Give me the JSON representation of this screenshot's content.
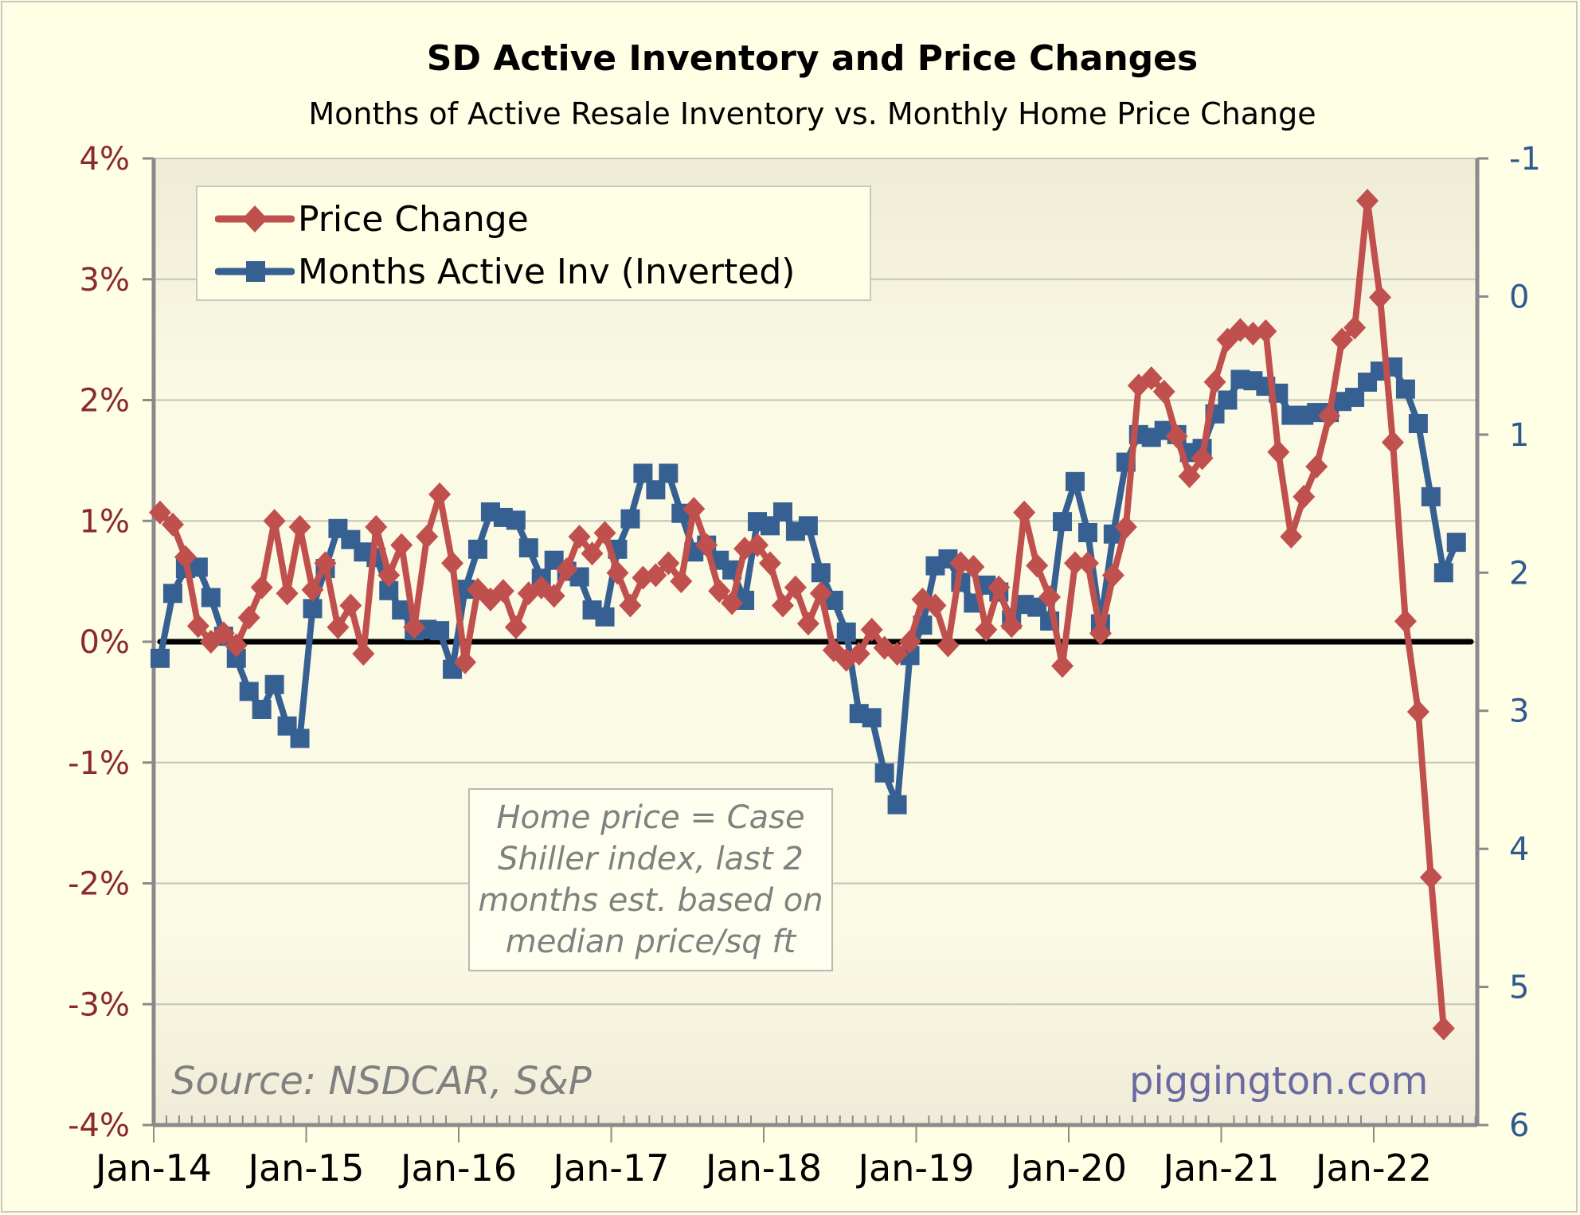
{
  "chart_data": {
    "type": "line",
    "title": "SD Active Inventory and Price Changes",
    "subtitle": "Months of Active Resale Inventory vs. Monthly Home Price Change",
    "xlabel": "",
    "ylabel_left": "",
    "ylabel_right": "",
    "x_tick_labels": [
      "Jan-14",
      "Jan-15",
      "Jan-16",
      "Jan-17",
      "Jan-18",
      "Jan-19",
      "Jan-20",
      "Jan-21",
      "Jan-22"
    ],
    "x_start": "Jan-14",
    "x_frequency": "monthly",
    "y_left": {
      "ticks": [
        "4%",
        "3%",
        "2%",
        "1%",
        "0%",
        "-1%",
        "-2%",
        "-3%",
        "-4%"
      ],
      "range": [
        -4,
        4
      ],
      "unit": "%"
    },
    "y_right": {
      "ticks": [
        "-1",
        "0",
        "1",
        "2",
        "3",
        "4",
        "5",
        "6"
      ],
      "range": [
        -1,
        6
      ],
      "inverted": true
    },
    "grid": true,
    "zero_line": 0,
    "legend_position": "top-left",
    "series": [
      {
        "name": "Price Change",
        "axis": "left",
        "color": "#c0504d",
        "marker": "diamond",
        "values": [
          1.07,
          0.97,
          0.7,
          0.13,
          0.0,
          0.07,
          -0.03,
          0.2,
          0.45,
          1.0,
          0.4,
          0.95,
          0.43,
          0.65,
          0.12,
          0.3,
          -0.1,
          0.95,
          0.55,
          0.8,
          0.12,
          0.87,
          1.22,
          0.65,
          -0.17,
          0.43,
          0.35,
          0.42,
          0.12,
          0.4,
          0.45,
          0.38,
          0.6,
          0.87,
          0.73,
          0.9,
          0.57,
          0.3,
          0.53,
          0.55,
          0.65,
          0.5,
          1.1,
          0.8,
          0.42,
          0.32,
          0.77,
          0.8,
          0.65,
          0.3,
          0.45,
          0.15,
          0.4,
          -0.07,
          -0.15,
          -0.1,
          0.1,
          -0.05,
          -0.1,
          0.0,
          0.35,
          0.3,
          -0.03,
          0.65,
          0.62,
          0.1,
          0.45,
          0.13,
          1.07,
          0.63,
          0.37,
          -0.2,
          0.65,
          0.65,
          0.07,
          0.55,
          0.95,
          2.12,
          2.18,
          2.07,
          1.7,
          1.37,
          1.52,
          2.15,
          2.5,
          2.58,
          2.55,
          2.57,
          1.57,
          0.87,
          1.2,
          1.45,
          1.87,
          2.5,
          2.6,
          3.65,
          2.85,
          1.65,
          0.17,
          -0.58,
          -1.95,
          -3.2
        ]
      },
      {
        "name": "Months Active Inv (Inverted)",
        "axis": "right",
        "color": "#376092",
        "marker": "square",
        "values": [
          2.62,
          2.15,
          1.97,
          1.96,
          2.18,
          2.46,
          2.62,
          2.86,
          2.99,
          2.81,
          3.11,
          3.2,
          2.26,
          1.97,
          1.68,
          1.76,
          1.85,
          1.89,
          2.13,
          2.27,
          2.42,
          2.41,
          2.42,
          2.7,
          2.12,
          1.83,
          1.56,
          1.6,
          1.62,
          1.82,
          2.04,
          1.91,
          1.99,
          2.03,
          2.27,
          2.32,
          1.83,
          1.61,
          1.28,
          1.4,
          1.28,
          1.57,
          1.85,
          1.8,
          1.91,
          1.98,
          2.2,
          1.63,
          1.66,
          1.56,
          1.7,
          1.66,
          2.0,
          2.2,
          2.43,
          3.02,
          3.05,
          3.45,
          3.68,
          2.6,
          2.38,
          1.95,
          1.9,
          2.07,
          2.22,
          2.09,
          2.14,
          2.34,
          2.23,
          2.25,
          2.35,
          1.63,
          1.34,
          1.71,
          2.37,
          1.72,
          1.2,
          1.0,
          1.02,
          0.97,
          1.0,
          1.13,
          1.1,
          0.85,
          0.75,
          0.6,
          0.61,
          0.65,
          0.7,
          0.86,
          0.86,
          0.84,
          0.84,
          0.76,
          0.73,
          0.62,
          0.54,
          0.51,
          0.67,
          0.92,
          1.45,
          2.0,
          1.78
        ]
      }
    ],
    "annotations": [
      "Home price = Case Shiller index, last 2 months est. based on median price/sq ft",
      "Source: NSDCAR, S&P",
      "piggington.com"
    ]
  },
  "note": {
    "lines": [
      "Home price = Case",
      "Shiller index, last 2",
      "months est. based on",
      "median price/sq ft"
    ]
  },
  "source": "Source: NSDCAR, S&P",
  "brand": "piggington.com"
}
